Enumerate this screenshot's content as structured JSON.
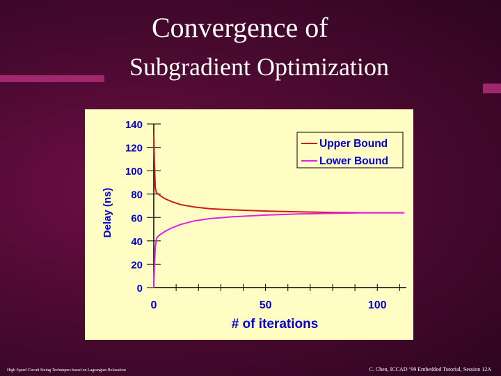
{
  "slide": {
    "title_line1": "Convergence of",
    "title_line2": "Subgradient Optimization",
    "footer_left": "High Speed Circuit Sizing Techniques based on Lagrangian Relaxation",
    "footer_right": "C. Chen, ICCAD ‘99 Embedded Tutorial, Session 12A",
    "colors": {
      "background": "#5a0a3a",
      "accent_bars": "#a0276e",
      "panel": "#fffdc3"
    }
  },
  "chart_data": {
    "type": "line",
    "xlabel": "# of iterations",
    "ylabel": "Delay (ns)",
    "xlim": [
      0,
      113
    ],
    "ylim": [
      0,
      140
    ],
    "xticks": [
      0,
      50,
      100
    ],
    "yticks": [
      0,
      20,
      40,
      60,
      80,
      100,
      120,
      140
    ],
    "legend_position": "top-right",
    "grid": false,
    "series": [
      {
        "name": "Upper Bound",
        "color": "#c81e14",
        "x": [
          0,
          0.3,
          0.7,
          1.2,
          2,
          3,
          5,
          8,
          12,
          18,
          25,
          35,
          50,
          65,
          80,
          95,
          112
        ],
        "y": [
          132,
          105,
          85,
          81,
          80,
          78.5,
          76,
          73.5,
          71,
          69,
          67.5,
          66.5,
          65.5,
          64.8,
          64.3,
          64,
          64
        ]
      },
      {
        "name": "Lower Bound",
        "color": "#e020e8",
        "x": [
          0,
          0.3,
          0.7,
          1.2,
          2,
          3,
          5,
          8,
          12,
          18,
          25,
          35,
          50,
          65,
          80,
          95,
          112
        ],
        "y": [
          0,
          20,
          35,
          42,
          44,
          45.5,
          48,
          51,
          54,
          57,
          59,
          60.5,
          62,
          63,
          63.5,
          64,
          64
        ]
      }
    ]
  }
}
